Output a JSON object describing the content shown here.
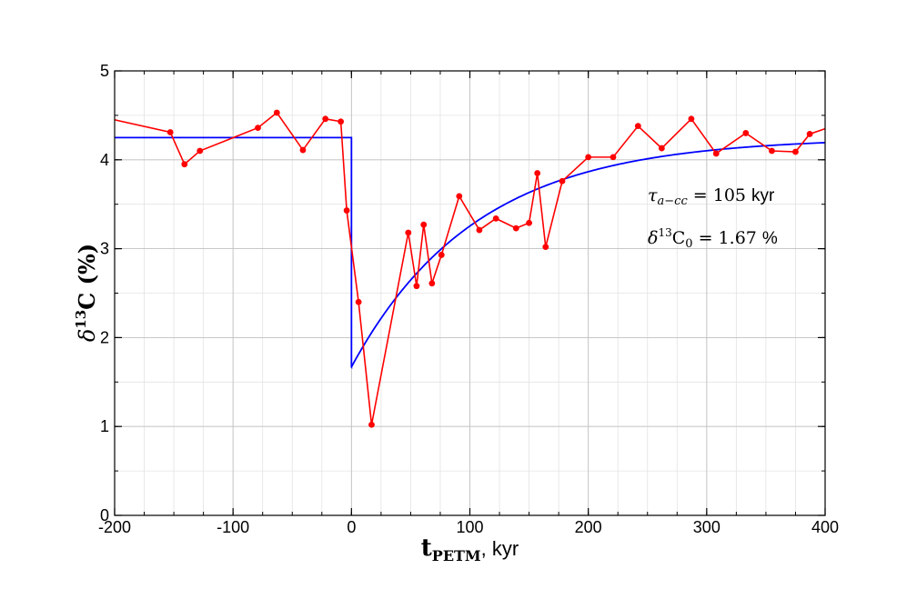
{
  "chart_data": {
    "type": "line",
    "xlim": [
      -200,
      400
    ],
    "ylim": [
      0,
      5
    ],
    "x_ticks": [
      -200,
      -100,
      0,
      100,
      200,
      300,
      400
    ],
    "y_ticks": [
      0,
      1,
      2,
      3,
      4,
      5
    ],
    "x_tick_labels": [
      "-200",
      "-100",
      "0",
      "100",
      "200",
      "300",
      "400"
    ],
    "y_tick_labels": [
      "0",
      "1",
      "2",
      "3",
      "4",
      "5"
    ],
    "xlabel": {
      "main": "t",
      "sub": "PETM",
      "rest": ", kyr"
    },
    "ylabel": {
      "delta": "δ",
      "sup": "13",
      "main": "C (%)"
    },
    "grid": true,
    "annotations": [
      {
        "sym": "τ",
        "sub": "a−cc",
        "eq": " = 105 ",
        "unit": "kyr"
      },
      {
        "sym": "δ",
        "sup": "13",
        "main": "C",
        "sub": "0",
        "eq": " = 1.67 ",
        "unit": "%"
      }
    ],
    "series": [
      {
        "color": "#ff0000",
        "markers": true,
        "x": [
          -200,
          -153,
          -141,
          -128,
          -79,
          -63,
          -41,
          -22,
          -9,
          -4,
          6,
          17,
          48,
          55,
          61,
          68,
          76,
          91,
          108,
          122,
          139,
          150,
          157,
          164,
          178,
          200,
          221,
          242,
          262,
          287,
          308,
          333,
          355,
          375,
          387,
          400
        ],
        "y": [
          4.45,
          4.31,
          3.95,
          4.1,
          4.36,
          4.53,
          4.11,
          4.46,
          4.43,
          3.43,
          2.4,
          1.02,
          3.18,
          2.58,
          3.27,
          2.61,
          2.93,
          3.59,
          3.21,
          3.34,
          3.23,
          3.29,
          3.85,
          3.02,
          3.76,
          4.03,
          4.03,
          4.38,
          4.13,
          4.46,
          4.07,
          4.3,
          4.1,
          4.09,
          4.29,
          4.35
        ],
        "marker_mask": [
          false,
          true,
          true,
          true,
          true,
          true,
          true,
          true,
          true,
          true,
          true,
          true,
          true,
          true,
          true,
          true,
          true,
          true,
          true,
          true,
          true,
          true,
          true,
          true,
          true,
          true,
          true,
          true,
          true,
          true,
          true,
          true,
          true,
          true,
          true,
          false
        ]
      },
      {
        "color": "#0000ff",
        "markers": false,
        "model": {
          "baseline": 4.25,
          "drop_at": 0,
          "min": 1.67,
          "tau": 105,
          "asymptote": 4.25
        }
      }
    ]
  }
}
